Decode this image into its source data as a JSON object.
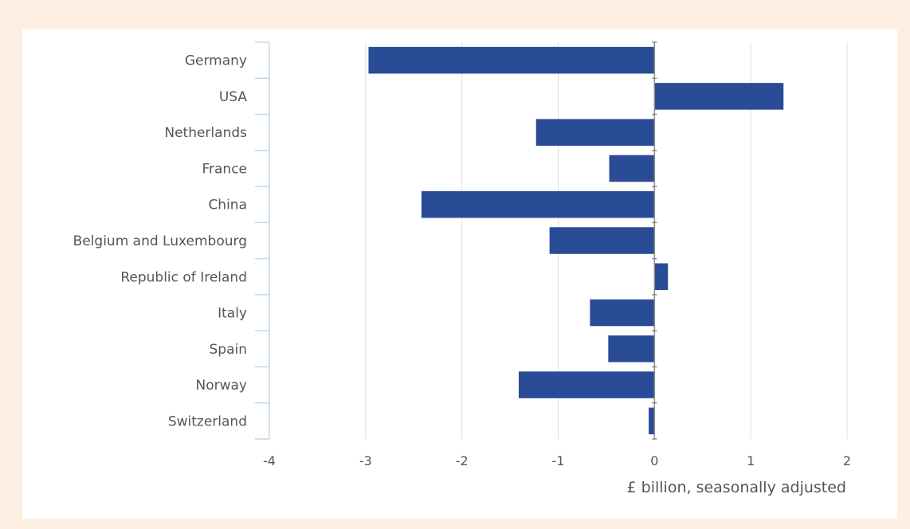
{
  "chart_data": {
    "type": "bar",
    "orientation": "horizontal",
    "categories": [
      "Germany",
      "USA",
      "Netherlands",
      "France",
      "China",
      "Belgium and Luxembourg",
      "Republic of Ireland",
      "Italy",
      "Spain",
      "Norway",
      "Switzerland"
    ],
    "values": [
      -2.97,
      1.34,
      -1.23,
      -0.47,
      -2.42,
      -1.09,
      0.14,
      -0.67,
      -0.48,
      -1.41,
      -0.06
    ],
    "x_ticks": [
      "-4",
      "-3",
      "-2",
      "-1",
      "0",
      "1",
      "2"
    ],
    "xlim": [
      -4,
      2
    ],
    "xlabel": "£ billion, seasonally adjusted",
    "ylabel": "",
    "title": "",
    "grid": "vertical",
    "legend": "none",
    "colors": {
      "bar": "#2a4b96",
      "grid": "#e0e0e0",
      "axis": "#c6d7ea",
      "zero_line": "#8a8a8a",
      "text": "#555555",
      "background": "#fdf0e2",
      "panel": "#ffffff"
    }
  }
}
